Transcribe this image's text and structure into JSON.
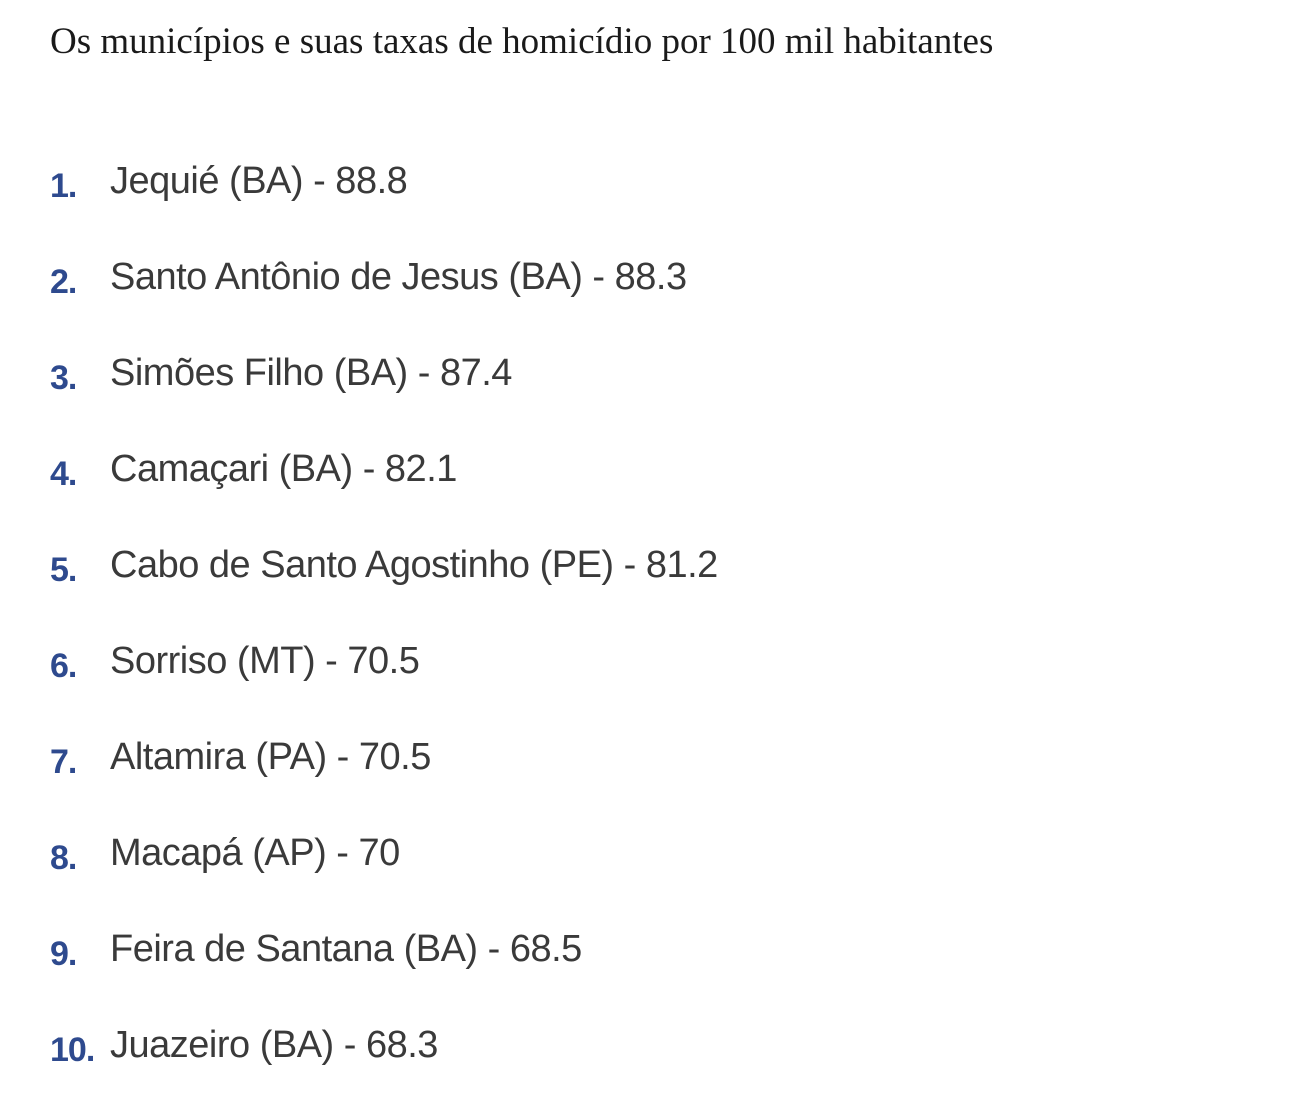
{
  "title": "Os municípios e suas taxas de homicídio por 100 mil habitantes",
  "colors": {
    "number": "#2e4a8e",
    "text": "#3a3a3a",
    "background": "#ffffff"
  },
  "items": [
    {
      "number": "1.",
      "text": "Jequié (BA) - 88.8"
    },
    {
      "number": "2.",
      "text": "Santo Antônio de Jesus (BA) - 88.3"
    },
    {
      "number": "3.",
      "text": "Simões Filho (BA) - 87.4"
    },
    {
      "number": "4.",
      "text": "Camaçari (BA) - 82.1"
    },
    {
      "number": "5.",
      "text": "Cabo de Santo Agostinho (PE) - 81.2"
    },
    {
      "number": "6.",
      "text": "Sorriso (MT) - 70.5"
    },
    {
      "number": "7.",
      "text": "Altamira (PA) - 70.5"
    },
    {
      "number": "8.",
      "text": "Macapá (AP) - 70"
    },
    {
      "number": "9.",
      "text": "Feira de Santana (BA) - 68.5"
    },
    {
      "number": "10.",
      "text": "Juazeiro (BA) - 68.3"
    }
  ]
}
